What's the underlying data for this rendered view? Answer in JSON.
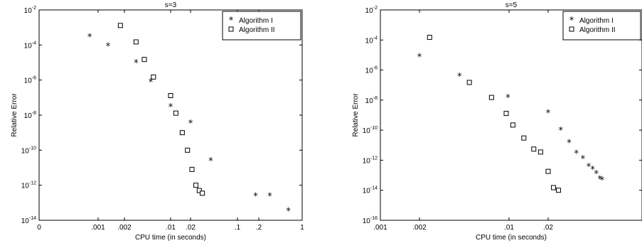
{
  "chart_data": [
    {
      "type": "scatter",
      "title": "s=3",
      "xlabel": "CPU time (in seconds)",
      "ylabel": "Relative Error",
      "y_scale": "log",
      "ylim": [
        1e-14,
        0.01
      ],
      "yticks": [
        -14,
        -12,
        -10,
        -8,
        -6,
        -4,
        -2
      ],
      "xticks": [
        "0",
        ".001",
        ".002",
        ".01",
        ".02",
        ".1",
        ".2",
        "1"
      ],
      "legend": {
        "position": "top-right",
        "entries": [
          "Algorithm I",
          "Algorithm II"
        ]
      },
      "series": [
        {
          "name": "Algorithm I",
          "marker": "asterisk",
          "x": [
            0.0008,
            0.0013,
            0.003,
            0.005,
            0.01,
            0.02,
            0.04,
            0.18,
            0.3,
            0.6
          ],
          "y": [
            0.0003,
            9e-05,
            1e-05,
            8e-07,
            3e-08,
            3.5e-09,
            2.5e-11,
            2.5e-13,
            2.5e-13,
            3.5e-14
          ]
        },
        {
          "name": "Algorithm II",
          "marker": "square",
          "x": [
            0.0018,
            0.003,
            0.004,
            0.0055,
            0.01,
            0.012,
            0.015,
            0.018,
            0.021,
            0.024,
            0.027,
            0.03
          ],
          "y": [
            0.0013,
            0.00015,
            1.5e-05,
            1.5e-06,
            1.3e-07,
            1.3e-08,
            1e-09,
            1e-10,
            8e-12,
            1e-12,
            5e-13,
            3.5e-13
          ]
        }
      ]
    },
    {
      "type": "scatter",
      "title": "s=5",
      "xlabel": "CPU time (in seconds)",
      "ylabel": "Relative Error",
      "x_scale": "log",
      "y_scale": "log",
      "ylim": [
        1e-16,
        0.01
      ],
      "xlim": [
        0.001,
        0.05
      ],
      "yticks": [
        -16,
        -14,
        -12,
        -10,
        -8,
        -6,
        -4,
        -2
      ],
      "xticks": [
        ".001",
        ".002",
        ".01",
        ".02"
      ],
      "legend": {
        "position": "top-right",
        "entries": [
          "Algorithm I",
          "Algorithm II"
        ]
      },
      "series": [
        {
          "name": "Algorithm I",
          "marker": "asterisk",
          "x": [
            0.002,
            0.0041,
            0.0098,
            0.02,
            0.025,
            0.029,
            0.033,
            0.037,
            0.041,
            0.044,
            0.047,
            0.05,
            0.052
          ],
          "y": [
            8e-06,
            4e-07,
            1.5e-08,
            1.5e-09,
            1e-10,
            1.5e-11,
            3e-12,
            1.3e-12,
            4e-13,
            2.5e-13,
            1.3e-13,
            6e-14,
            5e-14
          ]
        },
        {
          "name": "Algorithm II",
          "marker": "square",
          "x": [
            0.0024,
            0.0049,
            0.0073,
            0.0095,
            0.0107,
            0.013,
            0.0155,
            0.0175,
            0.02,
            0.022,
            0.024
          ],
          "y": [
            0.00015,
            1.5e-07,
            1.5e-08,
            1.3e-09,
            2.2e-10,
            3e-11,
            5.5e-12,
            3.5e-12,
            1.8e-13,
            1.5e-14,
            1e-14
          ]
        }
      ]
    }
  ]
}
